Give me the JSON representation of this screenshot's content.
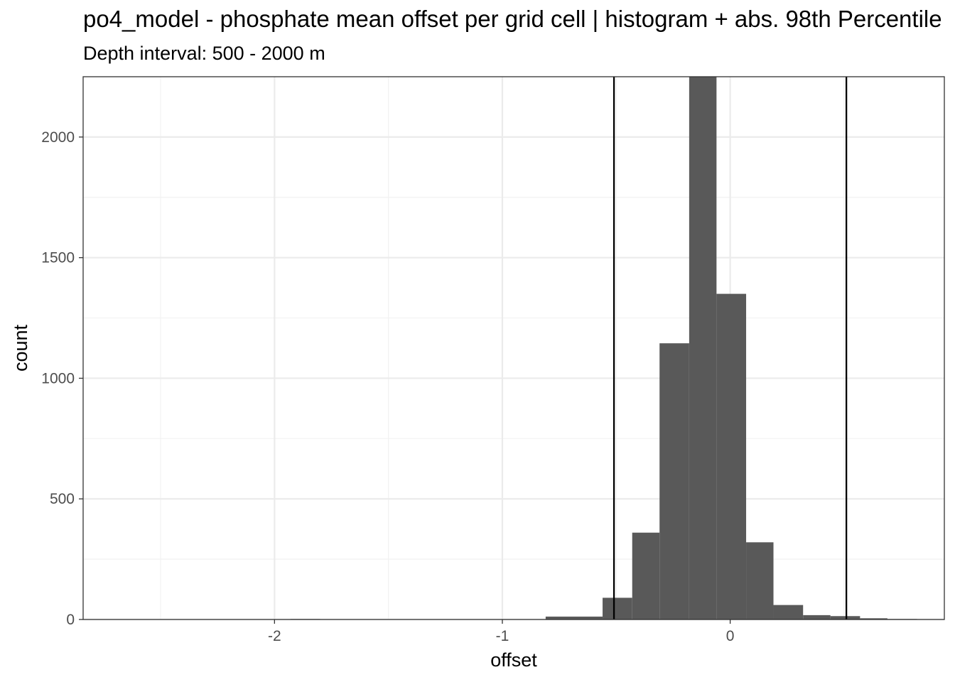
{
  "chart_data": {
    "type": "bar",
    "title": "po4_model  -  phosphate mean offset per grid cell | histogram + abs. 98th Percentile",
    "subtitle": "Depth interval: 500 - 2000 m",
    "xlabel": "offset",
    "ylabel": "count",
    "xlim": [
      -2.84,
      0.94
    ],
    "ylim": [
      0,
      2250
    ],
    "x_ticks": [
      -2,
      -1,
      0
    ],
    "x_tick_labels": [
      "-2",
      "-1",
      "0"
    ],
    "y_ticks": [
      0,
      500,
      1000,
      1500,
      2000
    ],
    "y_tick_labels": [
      "0",
      "500",
      "1000",
      "1500",
      "2000"
    ],
    "grid": true,
    "bar_color": "#595959",
    "bins": [
      {
        "x0": -1.93,
        "x1": -1.8,
        "count": 2
      },
      {
        "x0": -1.18,
        "x1": -1.05,
        "count": 1
      },
      {
        "x0": -0.81,
        "x1": -0.56,
        "count": 12
      },
      {
        "x0": -0.56,
        "x1": -0.43,
        "count": 90
      },
      {
        "x0": -0.43,
        "x1": -0.31,
        "count": 360
      },
      {
        "x0": -0.31,
        "x1": -0.18,
        "count": 1145
      },
      {
        "x0": -0.18,
        "x1": -0.06,
        "count": 2250
      },
      {
        "x0": -0.06,
        "x1": 0.07,
        "count": 1350
      },
      {
        "x0": 0.07,
        "x1": 0.19,
        "count": 320
      },
      {
        "x0": 0.19,
        "x1": 0.32,
        "count": 60
      },
      {
        "x0": 0.32,
        "x1": 0.44,
        "count": 18
      },
      {
        "x0": 0.44,
        "x1": 0.57,
        "count": 14
      },
      {
        "x0": 0.57,
        "x1": 0.69,
        "count": 5
      },
      {
        "x0": 0.69,
        "x1": 0.82,
        "count": 2
      }
    ],
    "vlines": [
      -0.51,
      0.51
    ],
    "vline_color": "#000000"
  }
}
